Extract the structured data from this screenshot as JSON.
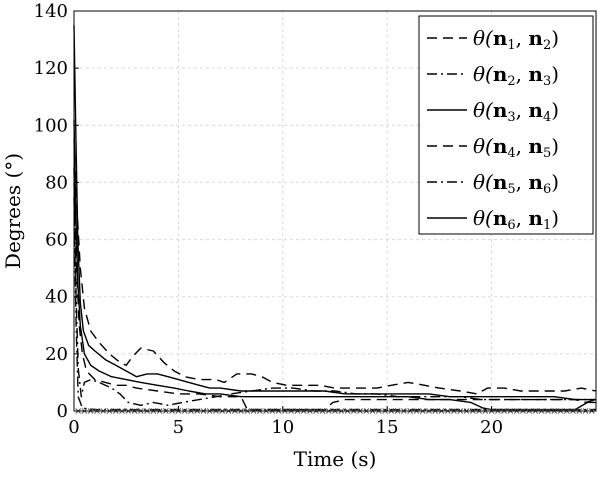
{
  "chart_data": {
    "type": "line",
    "xlabel": "Time (s)",
    "ylabel": "Degrees (°)",
    "xlim": [
      0,
      25
    ],
    "ylim": [
      0,
      140
    ],
    "xticks": [
      0,
      5,
      10,
      15,
      20
    ],
    "yticks": [
      0,
      20,
      40,
      60,
      80,
      100,
      120,
      140
    ],
    "grid": true,
    "legend_position": "top-right",
    "series": [
      {
        "name": "θ(n1, n2)",
        "label_parts": [
          "n",
          "1",
          "n",
          "2"
        ],
        "dash": "dashed",
        "points": [
          [
            0,
            95
          ],
          [
            0.15,
            70
          ],
          [
            0.3,
            50
          ],
          [
            0.5,
            36
          ],
          [
            0.8,
            28
          ],
          [
            1.2,
            24
          ],
          [
            1.7,
            20
          ],
          [
            2.2,
            17
          ],
          [
            2.5,
            16
          ],
          [
            2.8,
            19
          ],
          [
            3.2,
            22
          ],
          [
            3.8,
            21
          ],
          [
            4.3,
            17
          ],
          [
            4.8,
            14
          ],
          [
            5.3,
            12
          ],
          [
            6,
            11
          ],
          [
            6.8,
            11
          ],
          [
            7.2,
            10
          ],
          [
            7.8,
            13
          ],
          [
            8.5,
            13
          ],
          [
            9,
            12
          ],
          [
            9.5,
            10
          ],
          [
            10.2,
            9
          ],
          [
            11,
            9
          ],
          [
            11.8,
            9
          ],
          [
            12.5,
            8
          ],
          [
            13.5,
            8
          ],
          [
            14.5,
            8
          ],
          [
            15.2,
            9
          ],
          [
            16,
            10
          ],
          [
            16.8,
            9
          ],
          [
            17.5,
            8
          ],
          [
            18.5,
            7
          ],
          [
            19.3,
            6
          ],
          [
            19.8,
            8
          ],
          [
            20.6,
            8
          ],
          [
            21.4,
            7
          ],
          [
            22.5,
            7
          ],
          [
            23.5,
            7
          ],
          [
            24.3,
            8
          ],
          [
            25,
            7
          ]
        ]
      },
      {
        "name": "θ(n2, n3)",
        "label_parts": [
          "n",
          "2",
          "n",
          "3"
        ],
        "dash": "dashdot",
        "points": [
          [
            0,
            85
          ],
          [
            0.1,
            40
          ],
          [
            0.2,
            15
          ],
          [
            0.35,
            5
          ],
          [
            0.5,
            10
          ],
          [
            0.8,
            11
          ],
          [
            1.2,
            10
          ],
          [
            1.8,
            8
          ],
          [
            2.2,
            6
          ],
          [
            2.6,
            3
          ],
          [
            3.2,
            2
          ],
          [
            3.8,
            3
          ],
          [
            4.5,
            2
          ],
          [
            5.2,
            3
          ],
          [
            6,
            4
          ],
          [
            6.8,
            5
          ],
          [
            7.5,
            6
          ],
          [
            8.5,
            7
          ],
          [
            9.5,
            8
          ],
          [
            10.5,
            8
          ],
          [
            11.5,
            7
          ],
          [
            12.5,
            7
          ],
          [
            13.5,
            6
          ],
          [
            14.5,
            6
          ],
          [
            15.5,
            5
          ],
          [
            16.5,
            5
          ],
          [
            17.5,
            5
          ],
          [
            18.5,
            5
          ],
          [
            19.5,
            4
          ],
          [
            20.5,
            4
          ],
          [
            21.5,
            4
          ],
          [
            22.5,
            4
          ],
          [
            23.5,
            4
          ],
          [
            24.3,
            4
          ],
          [
            25,
            4
          ]
        ]
      },
      {
        "name": "θ(n3, n4)",
        "label_parts": [
          "n",
          "3",
          "n",
          "4"
        ],
        "dash": "solid",
        "points": [
          [
            0,
            135
          ],
          [
            0.08,
            100
          ],
          [
            0.18,
            60
          ],
          [
            0.3,
            38
          ],
          [
            0.45,
            28
          ],
          [
            0.7,
            23
          ],
          [
            1,
            21
          ],
          [
            1.5,
            18
          ],
          [
            2,
            16
          ],
          [
            2.5,
            14
          ],
          [
            3,
            12
          ],
          [
            3.5,
            13
          ],
          [
            4,
            13
          ],
          [
            4.5,
            12
          ],
          [
            5,
            11
          ],
          [
            5.5,
            10
          ],
          [
            6,
            9
          ],
          [
            6.5,
            8
          ],
          [
            7,
            8
          ],
          [
            8,
            7
          ],
          [
            9,
            7
          ],
          [
            10,
            7
          ],
          [
            11,
            7
          ],
          [
            12,
            7
          ],
          [
            13,
            6
          ],
          [
            14,
            6
          ],
          [
            15,
            6
          ],
          [
            16,
            6
          ],
          [
            17,
            6
          ],
          [
            18,
            5
          ],
          [
            19,
            5
          ],
          [
            20,
            5
          ],
          [
            21,
            5
          ],
          [
            22,
            5
          ],
          [
            23,
            5
          ],
          [
            24,
            4
          ],
          [
            25,
            4
          ]
        ]
      },
      {
        "name": "θ(n4, n5)",
        "label_parts": [
          "n",
          "4",
          "n",
          "5"
        ],
        "dash": "dashed",
        "points": [
          [
            0,
            80
          ],
          [
            0.12,
            50
          ],
          [
            0.25,
            30
          ],
          [
            0.4,
            20
          ],
          [
            0.6,
            14
          ],
          [
            1,
            11
          ],
          [
            1.5,
            10
          ],
          [
            2,
            9
          ],
          [
            2.5,
            9
          ],
          [
            3,
            8
          ],
          [
            4,
            7
          ],
          [
            5,
            6
          ],
          [
            6,
            6
          ],
          [
            7,
            5
          ],
          [
            8,
            5
          ],
          [
            8.3,
            0.5
          ],
          [
            9,
            0.5
          ],
          [
            10,
            0.5
          ],
          [
            11,
            0.5
          ],
          [
            12,
            0.5
          ],
          [
            12.4,
            3
          ],
          [
            13,
            4
          ],
          [
            14,
            4
          ],
          [
            15,
            4
          ],
          [
            16,
            4
          ],
          [
            17,
            4
          ],
          [
            18,
            4
          ],
          [
            19,
            4
          ],
          [
            20,
            4
          ],
          [
            21,
            4
          ],
          [
            22,
            4
          ],
          [
            23,
            4
          ],
          [
            24,
            4
          ],
          [
            24.5,
            3
          ],
          [
            25,
            4
          ]
        ]
      },
      {
        "name": "θ(n5, n6)",
        "label_parts": [
          "n",
          "5",
          "n",
          "6"
        ],
        "dash": "dashdot",
        "points": [
          [
            0,
            75
          ],
          [
            0.1,
            30
          ],
          [
            0.2,
            5
          ],
          [
            0.4,
            1
          ],
          [
            1,
            0.5
          ],
          [
            2,
            0.5
          ],
          [
            3,
            0.5
          ],
          [
            4,
            0.5
          ],
          [
            5,
            0.5
          ],
          [
            6,
            0.5
          ],
          [
            7,
            0.5
          ],
          [
            8,
            0.5
          ],
          [
            9,
            0.5
          ],
          [
            10,
            0.5
          ],
          [
            11,
            0.5
          ],
          [
            12,
            0.5
          ],
          [
            13,
            0.5
          ],
          [
            14,
            0.5
          ],
          [
            15,
            0.5
          ],
          [
            16,
            0.5
          ],
          [
            17,
            0.5
          ],
          [
            18,
            0.5
          ],
          [
            19,
            0.5
          ],
          [
            20,
            0.5
          ],
          [
            21,
            0.5
          ],
          [
            22,
            0.5
          ],
          [
            23,
            0.5
          ],
          [
            24,
            0.5
          ],
          [
            25,
            0.5
          ]
        ]
      },
      {
        "name": "θ(n6, n1)",
        "label_parts": [
          "n",
          "6",
          "n",
          "1"
        ],
        "dash": "solid",
        "points": [
          [
            0,
            102
          ],
          [
            0.08,
            70
          ],
          [
            0.18,
            45
          ],
          [
            0.3,
            30
          ],
          [
            0.5,
            20
          ],
          [
            0.8,
            16
          ],
          [
            1.2,
            14
          ],
          [
            1.8,
            12
          ],
          [
            2.5,
            11
          ],
          [
            3.2,
            10
          ],
          [
            4,
            9
          ],
          [
            4.8,
            8
          ],
          [
            5.5,
            7
          ],
          [
            6.3,
            6
          ],
          [
            7,
            6
          ],
          [
            8,
            5
          ],
          [
            9,
            5
          ],
          [
            10,
            5
          ],
          [
            11,
            5
          ],
          [
            12,
            5
          ],
          [
            13,
            5
          ],
          [
            14,
            5
          ],
          [
            15,
            5
          ],
          [
            16,
            5
          ],
          [
            17,
            4
          ],
          [
            18,
            4
          ],
          [
            19,
            3
          ],
          [
            19.6,
            1
          ],
          [
            20,
            0.5
          ],
          [
            21,
            0.5
          ],
          [
            22,
            0.5
          ],
          [
            23,
            0.5
          ],
          [
            24,
            0.5
          ],
          [
            24.6,
            3
          ],
          [
            25,
            3
          ]
        ]
      }
    ],
    "marker_series": {
      "marker": "x",
      "x": [
        0.2,
        0.5,
        0.8,
        1.1,
        1.4,
        1.7,
        2.0,
        2.3,
        2.6,
        2.9,
        3.2,
        3.5,
        3.8,
        4.1,
        4.4,
        4.7,
        5.0,
        5.3,
        5.6,
        5.9,
        6.2,
        6.5,
        6.8,
        7.1,
        7.4,
        7.7,
        8.0,
        8.3,
        8.6,
        8.9,
        9.2,
        9.5,
        9.8,
        10.1,
        10.4,
        10.7,
        11.0,
        11.3,
        11.6,
        11.9,
        12.2,
        12.5,
        12.8,
        13.1,
        13.4,
        13.7,
        14.0,
        14.3,
        14.6,
        14.9,
        15.2,
        15.5,
        15.8,
        16.1,
        16.4,
        16.7,
        17.0,
        17.3,
        17.6,
        17.9,
        18.2,
        18.5,
        18.8,
        19.1,
        19.4,
        19.7,
        20.0,
        20.3,
        20.6,
        20.9,
        21.2,
        21.5,
        21.8,
        22.1,
        22.4,
        22.7,
        23.0,
        23.3,
        23.6,
        23.9,
        24.2,
        24.5,
        24.8
      ],
      "y": 0
    }
  }
}
